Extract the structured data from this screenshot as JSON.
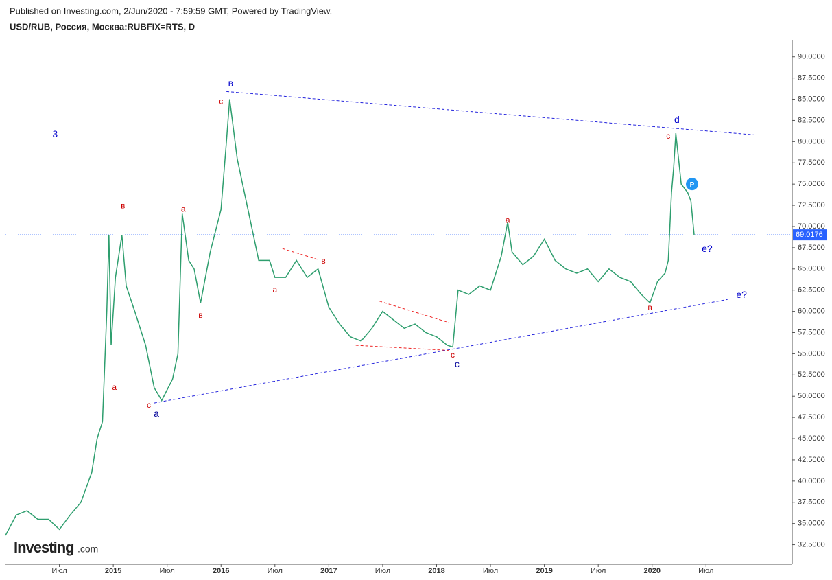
{
  "header": {
    "published": "Published on Investing.com, 2/Jun/2020 - 7:59:59 GMT, Powered by TradingView.",
    "symbol": "USD/RUB, Россия, Москва:RUBFIX=RTS, D"
  },
  "logo": {
    "brand": "Investing",
    "suffix": ".com"
  },
  "chart_data": {
    "type": "line",
    "color": "#2e9e6e",
    "grid": false,
    "x": [
      2014.0,
      2014.1,
      2014.2,
      2014.3,
      2014.4,
      2014.5,
      2014.6,
      2014.7,
      2014.8,
      2014.85,
      2014.9,
      2014.94,
      2014.96,
      2014.98,
      2015.02,
      2015.08,
      2015.12,
      2015.2,
      2015.3,
      2015.38,
      2015.45,
      2015.55,
      2015.6,
      2015.64,
      2015.7,
      2015.75,
      2015.81,
      2015.9,
      2016.0,
      2016.05,
      2016.08,
      2016.15,
      2016.25,
      2016.35,
      2016.45,
      2016.5,
      2016.6,
      2016.7,
      2016.8,
      2016.9,
      2017.0,
      2017.1,
      2017.2,
      2017.3,
      2017.4,
      2017.5,
      2017.6,
      2017.7,
      2017.8,
      2017.9,
      2018.0,
      2018.1,
      2018.15,
      2018.2,
      2018.3,
      2018.4,
      2018.5,
      2018.6,
      2018.66,
      2018.7,
      2018.8,
      2018.9,
      2019.0,
      2019.1,
      2019.2,
      2019.3,
      2019.4,
      2019.5,
      2019.6,
      2019.7,
      2019.8,
      2019.9,
      2019.98,
      2020.05,
      2020.12,
      2020.15,
      2020.18,
      2020.2,
      2020.22,
      2020.27,
      2020.33,
      2020.36,
      2020.39
    ],
    "values": [
      33.6,
      36,
      36.5,
      35.5,
      35.5,
      34.3,
      36,
      37.5,
      41,
      45,
      47,
      60,
      69,
      56,
      64,
      69,
      63,
      60,
      56,
      51,
      49.5,
      52,
      55,
      71.5,
      66,
      65,
      61,
      67,
      72,
      80,
      85,
      78,
      72,
      66,
      66,
      64,
      64,
      66,
      64,
      65,
      60.5,
      58.5,
      57,
      56.5,
      58,
      60,
      59,
      58,
      58.5,
      57.5,
      57,
      56,
      55.8,
      62.5,
      62,
      63,
      62.5,
      66.5,
      70.5,
      67,
      65.5,
      66.5,
      68.5,
      66,
      65,
      64.5,
      65,
      63.5,
      65,
      64,
      63.5,
      62,
      61,
      63.5,
      64.5,
      66,
      74,
      77,
      81,
      75,
      74,
      73,
      69.0176
    ],
    "xlim": [
      2014.0,
      2021.3
    ],
    "ylim": [
      30.2,
      92.0
    ],
    "xticks": [
      {
        "value": 2014.5,
        "label": "Июл"
      },
      2015,
      {
        "value": 2015.5,
        "label": "Июл"
      },
      2016,
      {
        "value": 2016.5,
        "label": "Июл"
      },
      2017,
      {
        "value": 2017.5,
        "label": "Июл"
      },
      2018,
      {
        "value": 2018.5,
        "label": "Июл"
      },
      2019,
      {
        "value": 2019.5,
        "label": "Июл"
      },
      2020,
      {
        "value": 2020.5,
        "label": "Июл"
      }
    ],
    "yticks": [
      {
        "value": 32.5,
        "label": "32.5000"
      },
      {
        "value": 35,
        "label": "35.0000"
      },
      {
        "value": 37.5,
        "label": "37.5000"
      },
      {
        "value": 40,
        "label": "40.0000"
      },
      {
        "value": 42.5,
        "label": "42.5000"
      },
      {
        "value": 45,
        "label": "45.0000"
      },
      {
        "value": 47.5,
        "label": "47.5000"
      },
      {
        "value": 50,
        "label": "50.0000"
      },
      {
        "value": 52.5,
        "label": "52.5000"
      },
      {
        "value": 55,
        "label": "55.0000"
      },
      {
        "value": 57.5,
        "label": "57.5000"
      },
      {
        "value": 60,
        "label": "60.0000"
      },
      {
        "value": 62.5,
        "label": "62.5000"
      },
      {
        "value": 65,
        "label": "65.0000"
      },
      {
        "value": 67.5,
        "label": "67.5000"
      },
      {
        "value": 70,
        "label": "70.0000"
      },
      {
        "value": 72.5,
        "label": "72.5000"
      },
      {
        "value": 75,
        "label": "75.0000"
      },
      {
        "value": 77.5,
        "label": "77.5000"
      },
      {
        "value": 80,
        "label": "80.0000"
      },
      {
        "value": 82.5,
        "label": "82.5000"
      },
      {
        "value": 85,
        "label": "85.0000"
      },
      {
        "value": 87.5,
        "label": "87.5000"
      },
      {
        "value": 90,
        "label": "90.0000"
      }
    ],
    "last_price": 69.0176,
    "last_price_color": "#2962ff",
    "badge": "P",
    "annotations": [
      {
        "text": "3",
        "x": 2014.46,
        "y": 80.8,
        "color": "#0000cc"
      },
      {
        "text": "в",
        "x": 2015.09,
        "y": 72.4,
        "color": "#cc0000"
      },
      {
        "text": "a",
        "x": 2015.01,
        "y": 51.0,
        "color": "#cc0000"
      },
      {
        "text": "c",
        "x": 2015.33,
        "y": 48.9,
        "color": "#cc0000"
      },
      {
        "text": "a",
        "x": 2015.4,
        "y": 47.9,
        "color": "#000099"
      },
      {
        "text": "a",
        "x": 2015.65,
        "y": 72.0,
        "color": "#cc0000"
      },
      {
        "text": "в",
        "x": 2015.81,
        "y": 59.5,
        "color": "#cc0000"
      },
      {
        "text": "в",
        "x": 2016.09,
        "y": 86.8,
        "color": "#0000cc"
      },
      {
        "text": "c",
        "x": 2016.0,
        "y": 84.7,
        "color": "#cc0000"
      },
      {
        "text": "a",
        "x": 2016.5,
        "y": 62.5,
        "color": "#cc0000"
      },
      {
        "text": "в",
        "x": 2016.95,
        "y": 65.9,
        "color": "#cc0000"
      },
      {
        "text": "c",
        "x": 2018.15,
        "y": 54.8,
        "color": "#cc0000"
      },
      {
        "text": "c",
        "x": 2018.19,
        "y": 53.7,
        "color": "#000099"
      },
      {
        "text": "a",
        "x": 2018.66,
        "y": 70.7,
        "color": "#cc0000"
      },
      {
        "text": "в",
        "x": 2019.98,
        "y": 60.4,
        "color": "#cc0000"
      },
      {
        "text": "c",
        "x": 2020.15,
        "y": 80.6,
        "color": "#cc0000"
      },
      {
        "text": "d",
        "x": 2020.23,
        "y": 82.5,
        "color": "#0000cc"
      },
      {
        "text": "e?",
        "x": 2020.51,
        "y": 67.3,
        "color": "#0000cc"
      },
      {
        "text": "e?",
        "x": 2020.83,
        "y": 61.9,
        "color": "#0000cc"
      }
    ],
    "trendlines": [
      {
        "x": [
          2015.38,
          2020.7
        ],
        "y": [
          49.2,
          61.4
        ],
        "color": "#2222dd"
      },
      {
        "x": [
          2016.05,
          2020.95
        ],
        "y": [
          85.9,
          80.8
        ],
        "color": "#2222dd"
      },
      {
        "x": [
          2016.57,
          2016.9
        ],
        "y": [
          67.4,
          66.1
        ],
        "color": "#ee2222"
      },
      {
        "x": [
          2017.47,
          2018.11
        ],
        "y": [
          61.2,
          58.7
        ],
        "color": "#ee2222"
      },
      {
        "x": [
          2017.25,
          2018.11
        ],
        "y": [
          56.0,
          55.4
        ],
        "color": "#ee2222"
      }
    ]
  }
}
